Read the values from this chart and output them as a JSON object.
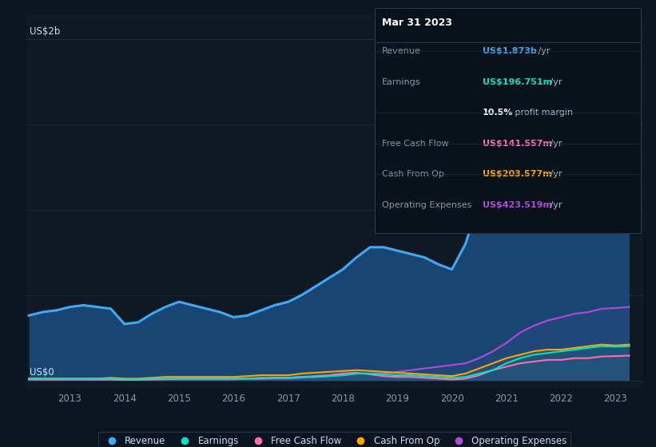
{
  "bg_color": "#0d1421",
  "plot_bg_color": "#0f1923",
  "grid_color": "#1e2d3d",
  "ylabel": "US$2b",
  "y0_label": "US$0",
  "title_box": {
    "date": "Mar 31 2023",
    "rows": [
      {
        "label": "Revenue",
        "value": "US$1.873b",
        "unit": " /yr",
        "value_color": "#3fa9f5"
      },
      {
        "label": "Earnings",
        "value": "US$196.751m",
        "unit": " /yr",
        "value_color": "#00e5c0"
      },
      {
        "label": "",
        "value": "10.5%",
        "unit": " profit margin",
        "value_color": "#ffffff"
      },
      {
        "label": "Free Cash Flow",
        "value": "US$141.557m",
        "unit": " /yr",
        "value_color": "#ff6eb4"
      },
      {
        "label": "Cash From Op",
        "value": "US$203.577m",
        "unit": " /yr",
        "value_color": "#ffa500"
      },
      {
        "label": "Operating Expenses",
        "value": "US$423.519m",
        "unit": " /yr",
        "value_color": "#b04cdb"
      }
    ]
  },
  "years": [
    2012.25,
    2012.5,
    2012.75,
    2013.0,
    2013.25,
    2013.5,
    2013.75,
    2014.0,
    2014.25,
    2014.5,
    2014.75,
    2015.0,
    2015.25,
    2015.5,
    2015.75,
    2016.0,
    2016.25,
    2016.5,
    2016.75,
    2017.0,
    2017.25,
    2017.5,
    2017.75,
    2018.0,
    2018.25,
    2018.5,
    2018.75,
    2019.0,
    2019.25,
    2019.5,
    2019.75,
    2020.0,
    2020.25,
    2020.5,
    2020.75,
    2021.0,
    2021.25,
    2021.5,
    2021.75,
    2022.0,
    2022.25,
    2022.5,
    2022.75,
    2023.0,
    2023.25
  ],
  "revenue": [
    0.38,
    0.4,
    0.41,
    0.43,
    0.44,
    0.43,
    0.42,
    0.33,
    0.34,
    0.39,
    0.43,
    0.46,
    0.44,
    0.42,
    0.4,
    0.37,
    0.38,
    0.41,
    0.44,
    0.46,
    0.5,
    0.55,
    0.6,
    0.65,
    0.72,
    0.78,
    0.78,
    0.76,
    0.74,
    0.72,
    0.68,
    0.65,
    0.8,
    1.05,
    1.25,
    1.4,
    1.5,
    1.55,
    1.55,
    1.5,
    1.55,
    1.6,
    1.7,
    1.87,
    1.92
  ],
  "earnings": [
    0.01,
    0.01,
    0.01,
    0.01,
    0.01,
    0.01,
    0.01,
    0.005,
    0.005,
    0.01,
    0.01,
    0.01,
    0.01,
    0.01,
    0.01,
    0.01,
    0.01,
    0.015,
    0.015,
    0.015,
    0.02,
    0.02,
    0.025,
    0.03,
    0.04,
    0.04,
    0.035,
    0.03,
    0.03,
    0.025,
    0.02,
    0.015,
    0.02,
    0.04,
    0.06,
    0.1,
    0.13,
    0.15,
    0.16,
    0.17,
    0.18,
    0.19,
    0.2,
    0.197,
    0.2
  ],
  "free_cash": [
    0.005,
    0.005,
    0.005,
    0.005,
    0.005,
    0.005,
    0.005,
    0.003,
    0.003,
    0.005,
    0.007,
    0.01,
    0.01,
    0.01,
    0.01,
    0.01,
    0.01,
    0.01,
    0.015,
    0.015,
    0.02,
    0.025,
    0.03,
    0.04,
    0.045,
    0.035,
    0.025,
    0.02,
    0.02,
    0.015,
    0.01,
    0.005,
    0.01,
    0.03,
    0.06,
    0.08,
    0.1,
    0.11,
    0.12,
    0.12,
    0.13,
    0.13,
    0.14,
    0.142,
    0.145
  ],
  "cash_op": [
    0.01,
    0.01,
    0.01,
    0.01,
    0.01,
    0.01,
    0.015,
    0.01,
    0.01,
    0.015,
    0.02,
    0.02,
    0.02,
    0.02,
    0.02,
    0.02,
    0.025,
    0.03,
    0.03,
    0.03,
    0.04,
    0.045,
    0.05,
    0.055,
    0.06,
    0.055,
    0.05,
    0.045,
    0.04,
    0.035,
    0.03,
    0.025,
    0.04,
    0.07,
    0.1,
    0.13,
    0.15,
    0.17,
    0.18,
    0.18,
    0.19,
    0.2,
    0.21,
    0.204,
    0.21
  ],
  "op_expenses": [
    0.005,
    0.005,
    0.005,
    0.005,
    0.005,
    0.005,
    0.005,
    0.005,
    0.005,
    0.005,
    0.005,
    0.005,
    0.005,
    0.005,
    0.005,
    0.005,
    0.01,
    0.01,
    0.01,
    0.01,
    0.015,
    0.02,
    0.025,
    0.03,
    0.04,
    0.04,
    0.04,
    0.05,
    0.06,
    0.07,
    0.08,
    0.09,
    0.1,
    0.13,
    0.17,
    0.22,
    0.28,
    0.32,
    0.35,
    0.37,
    0.39,
    0.4,
    0.42,
    0.424,
    0.43
  ],
  "revenue_color": "#3fa9f5",
  "earnings_color": "#00e5c0",
  "free_cash_color": "#ff6eb4",
  "cash_op_color": "#ffa500",
  "op_expenses_color": "#b04cdb",
  "legend_entries": [
    "Revenue",
    "Earnings",
    "Free Cash Flow",
    "Cash From Op",
    "Operating Expenses"
  ],
  "yticks": [
    0.0,
    0.5,
    1.0,
    1.5,
    2.0
  ],
  "xlim": [
    2012.2,
    2023.5
  ],
  "ylim": [
    -0.05,
    2.15
  ],
  "x_tick_years": [
    2013,
    2014,
    2015,
    2016,
    2017,
    2018,
    2019,
    2020,
    2021,
    2022,
    2023
  ]
}
